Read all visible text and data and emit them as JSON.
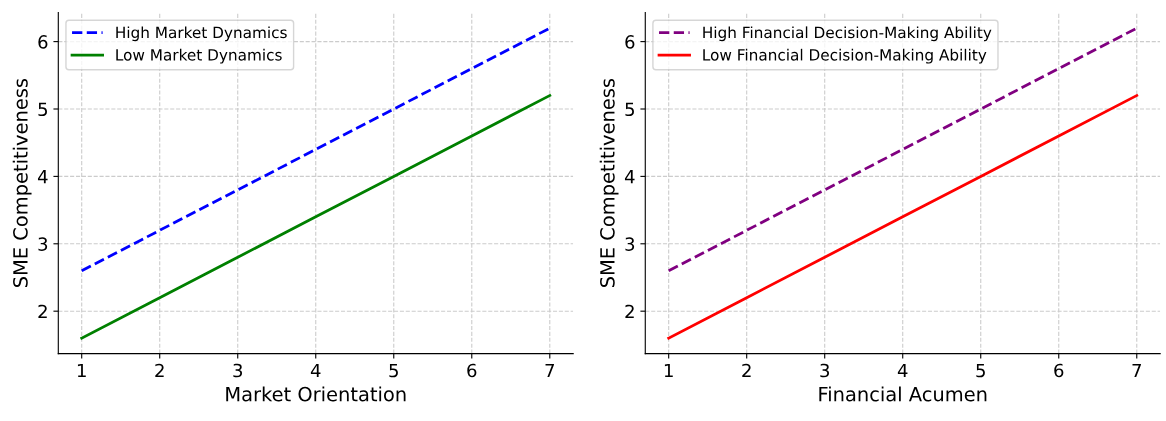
{
  "chart_data": [
    {
      "type": "line",
      "xlabel": "Market Orientation",
      "ylabel": "SME Competitiveness",
      "x": [
        1,
        2,
        3,
        4,
        5,
        6,
        7
      ],
      "xlim": [
        0.7,
        7.3
      ],
      "ylim": [
        1.37,
        6.43
      ],
      "xticks": [
        1,
        2,
        3,
        4,
        5,
        6,
        7
      ],
      "yticks": [
        2,
        3,
        4,
        5,
        6
      ],
      "grid": true,
      "legend": "top left",
      "series": [
        {
          "name": "High Market Dynamics",
          "color": "#0000ff",
          "line_style": "dashed",
          "values": [
            2.6,
            3.2,
            3.8,
            4.4,
            5.0,
            5.6,
            6.2
          ]
        },
        {
          "name": "Low Market Dynamics",
          "color": "#008000",
          "line_style": "solid",
          "values": [
            1.6,
            2.2,
            2.8,
            3.4,
            4.0,
            4.6,
            5.2
          ]
        }
      ]
    },
    {
      "type": "line",
      "xlabel": "Financial Acumen",
      "ylabel": "SME Competitiveness",
      "x": [
        1,
        2,
        3,
        4,
        5,
        6,
        7
      ],
      "xlim": [
        0.7,
        7.3
      ],
      "ylim": [
        1.37,
        6.43
      ],
      "xticks": [
        1,
        2,
        3,
        4,
        5,
        6,
        7
      ],
      "yticks": [
        2,
        3,
        4,
        5,
        6
      ],
      "grid": true,
      "legend": "top left",
      "series": [
        {
          "name": "High Financial Decision-Making Ability",
          "color": "#800080",
          "line_style": "dashed",
          "values": [
            2.6,
            3.2,
            3.8,
            4.4,
            5.0,
            5.6,
            6.2
          ]
        },
        {
          "name": "Low Financial Decision-Making Ability",
          "color": "#ff0000",
          "line_style": "solid",
          "values": [
            1.6,
            2.2,
            2.8,
            3.4,
            4.0,
            4.6,
            5.2
          ]
        }
      ]
    }
  ]
}
